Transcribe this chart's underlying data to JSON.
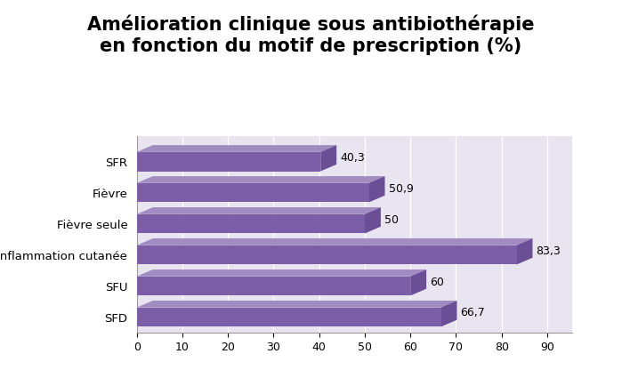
{
  "title": "Amélioration clinique sous antibiothérapie\nen fonction du motif de prescription (%)",
  "categories": [
    "SFR",
    "Fièvre",
    "Fièvre seule",
    "Inflammation cutanée",
    "SFU",
    "SFD"
  ],
  "values": [
    40.3,
    50.9,
    50,
    83.3,
    60,
    66.7
  ],
  "bar_color_face": "#7B5EA7",
  "bar_color_top": "#A08CC0",
  "bar_color_side": "#6A4E96",
  "floor_color": "#C8C4D0",
  "wall_color": "#E8E4F0",
  "grid_color": "#FFFFFF",
  "xlim": [
    0,
    90
  ],
  "xticks": [
    0,
    10,
    20,
    30,
    40,
    50,
    60,
    70,
    80,
    90
  ],
  "background_color": "#FFFFFF",
  "title_fontsize": 15,
  "label_fontsize": 9.5,
  "tick_fontsize": 9,
  "value_fontsize": 9
}
